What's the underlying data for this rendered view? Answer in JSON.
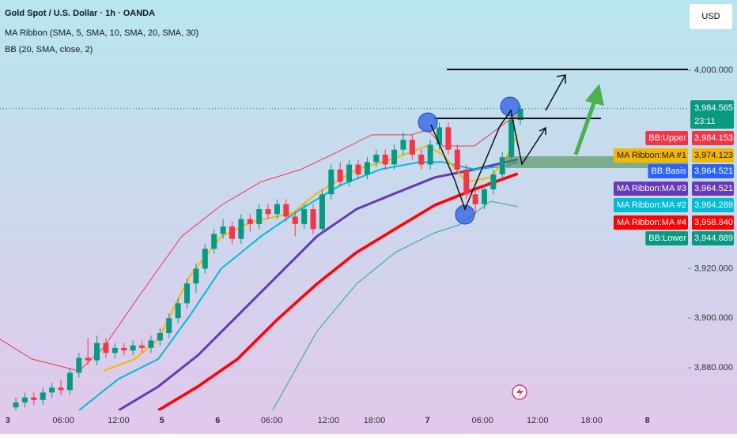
{
  "header": {
    "title": "Gold Spot / U.S. Dollar · 1h · OANDA",
    "indicator_1": "MA Ribbon (SMA, 5, SMA, 10, SMA, 20, SMA, 30)",
    "indicator_2": "BB (20, SMA, close, 2)",
    "currency": "USD"
  },
  "chart_data": {
    "type": "candlestick",
    "x": [
      -5,
      -4,
      -3,
      -2,
      -1,
      0,
      1,
      2,
      3,
      4,
      5,
      6,
      7,
      8,
      9,
      10,
      11,
      12,
      13,
      14,
      15,
      16,
      17,
      18,
      19,
      20,
      21,
      22,
      23,
      24,
      25,
      26,
      27,
      28,
      29,
      30,
      31,
      32,
      33,
      34,
      35,
      36,
      37,
      38,
      39,
      40,
      41,
      42,
      43,
      44,
      45,
      46,
      47,
      48,
      49,
      50,
      51
    ],
    "open": [
      3864,
      3866,
      3868,
      3867,
      3870,
      3872,
      3871,
      3878,
      3884,
      3883,
      3890,
      3886,
      3888,
      3887,
      3889,
      3888,
      3891,
      3894,
      3900,
      3906,
      3914,
      3920,
      3928,
      3934,
      3937,
      3932,
      3940,
      3938,
      3944,
      3942,
      3946,
      3941,
      3938,
      3944,
      3936,
      3950,
      3960,
      3955,
      3962,
      3958,
      3963,
      3966,
      3962,
      3968,
      3972,
      3966,
      3962,
      3970,
      3977,
      3968,
      3960,
      3950,
      3946,
      3952,
      3958,
      3965,
      3980
    ],
    "high": [
      3868,
      3870,
      3870,
      3872,
      3874,
      3875,
      3880,
      3886,
      3892,
      3893,
      3892,
      3890,
      3890,
      3891,
      3891,
      3893,
      3896,
      3902,
      3908,
      3916,
      3922,
      3930,
      3936,
      3940,
      3939,
      3942,
      3942,
      3946,
      3946,
      3948,
      3948,
      3943,
      3946,
      3946,
      3952,
      3962,
      3963,
      3964,
      3964,
      3965,
      3968,
      3968,
      3970,
      3975,
      3974,
      3968,
      3972,
      3979,
      3979,
      3970,
      3962,
      3952,
      3954,
      3960,
      3967,
      3982,
      3986
    ],
    "low": [
      3862,
      3864,
      3865,
      3865,
      3868,
      3869,
      3869,
      3876,
      3881,
      3881,
      3884,
      3884,
      3885,
      3885,
      3886,
      3886,
      3889,
      3892,
      3898,
      3904,
      3910,
      3918,
      3926,
      3932,
      3930,
      3930,
      3935,
      3936,
      3940,
      3940,
      3939,
      3933,
      3936,
      3934,
      3934,
      3948,
      3953,
      3953,
      3956,
      3956,
      3961,
      3960,
      3960,
      3966,
      3964,
      3960,
      3960,
      3968,
      3966,
      3958,
      3948,
      3942,
      3944,
      3950,
      3956,
      3963,
      3978
    ],
    "close": [
      3866,
      3868,
      3867,
      3870,
      3872,
      3871,
      3878,
      3884,
      3883,
      3890,
      3886,
      3888,
      3887,
      3889,
      3888,
      3891,
      3894,
      3900,
      3906,
      3914,
      3920,
      3928,
      3934,
      3937,
      3932,
      3940,
      3938,
      3944,
      3942,
      3946,
      3941,
      3938,
      3944,
      3936,
      3950,
      3960,
      3955,
      3962,
      3958,
      3963,
      3966,
      3962,
      3968,
      3972,
      3966,
      3962,
      3970,
      3977,
      3968,
      3960,
      3950,
      3946,
      3952,
      3958,
      3965,
      3980,
      3984.565
    ],
    "up_color": "#089981",
    "down_color": "#f23645",
    "lines": [
      {
        "color": "#f23645",
        "width": 1,
        "x": [
          -6.76,
          -3.2,
          2.0,
          4.7,
          9.0,
          13.4,
          17.8,
          22.2,
          26.6,
          30.1,
          34.5,
          38.9,
          40.7,
          42.4,
          45.9,
          49.4,
          50.7
        ],
        "values": [
          3891.5,
          3883.5,
          3878.7,
          3888,
          3910.6,
          3933,
          3945.6,
          3955,
          3960,
          3966,
          3974,
          3974,
          3976,
          3969.5,
          3969.5,
          3979,
          3982
        ]
      },
      {
        "color": "#22ab94",
        "width": 1,
        "x": [
          23.5,
          28.4,
          32.8,
          37.1,
          41.5,
          44.2,
          47.7,
          50.7
        ],
        "values": [
          3862.8,
          3894.6,
          3913.8,
          3926.5,
          3934.5,
          3937.6,
          3947.2,
          3945
        ]
      },
      {
        "color": "#ef4f6b",
        "width": 4,
        "x": [
          10.8,
          15.2,
          19.6,
          24.0,
          28.4,
          32.8,
          37.1,
          41.5,
          45.9,
          50.7
        ],
        "values": [
          3862.8,
          3872.4,
          3883.5,
          3899.4,
          3913.8,
          3926.5,
          3936,
          3945.6,
          3952,
          3958.3
        ]
      },
      {
        "color": "#ff0000",
        "width": 3,
        "x": [
          10.8,
          15.2,
          19.6,
          24.0,
          28.4,
          32.8,
          37.1,
          41.5,
          45.9,
          50.7
        ],
        "values": [
          3862.8,
          3872.4,
          3883.5,
          3899.4,
          3913.8,
          3926.5,
          3936,
          3945.6,
          3952,
          3958.3
        ]
      },
      {
        "color": "#673ab7",
        "width": 3,
        "x": [
          6.4,
          10.8,
          15.2,
          19.6,
          24.0,
          28.4,
          32.8,
          37.1,
          41.5,
          45.9,
          50.7
        ],
        "values": [
          3862.8,
          3872.4,
          3885,
          3901,
          3917,
          3933,
          3944,
          3950.4,
          3956.8,
          3960,
          3964.1
        ]
      },
      {
        "color": "#00bcd4",
        "width": 2,
        "x": [
          2.0,
          6.4,
          10.8,
          14.3,
          17.8,
          22.2,
          26.6,
          31.0,
          35.4,
          39.8,
          42.4,
          45.9,
          49.4,
          50.7
        ],
        "values": [
          3862.8,
          3875.5,
          3883.5,
          3901,
          3920,
          3933,
          3944,
          3953.6,
          3960,
          3963,
          3963,
          3960,
          3961.5,
          3963
        ]
      },
      {
        "color": "#f5b800",
        "width": 2,
        "x": [
          4.7,
          8.2,
          10.8,
          14.3,
          17.8,
          21.3,
          25.7,
          28.4,
          32.8,
          37.1,
          40.7,
          42.4,
          45.0,
          47.7,
          49.4,
          50.7
        ],
        "values": [
          3878.7,
          3883.5,
          3891.5,
          3917,
          3933,
          3939,
          3942.4,
          3950.4,
          3960,
          3964.7,
          3969.5,
          3966,
          3955,
          3956.8,
          3964.7,
          3974
        ]
      }
    ],
    "xlim": [
      -6.76,
      69.6
    ],
    "ylim": [
      3862.8,
      4028.4
    ],
    "xticks": [
      {
        "value": -5.9,
        "label": "3"
      },
      {
        "value": 0.27,
        "label": "06:00"
      },
      {
        "value": 6.4,
        "label": "12:00"
      },
      {
        "value": 11.2,
        "label": "5"
      },
      {
        "value": 17.4,
        "label": "6"
      },
      {
        "value": 23.4,
        "label": "06:00"
      },
      {
        "value": 29.7,
        "label": "12:00"
      },
      {
        "value": 34.8,
        "label": "18:00"
      },
      {
        "value": 40.7,
        "label": "7"
      },
      {
        "value": 46.8,
        "label": "06:00"
      },
      {
        "value": 52.9,
        "label": "12:00"
      },
      {
        "value": 58.9,
        "label": "18:00"
      },
      {
        "value": 65.1,
        "label": "8"
      }
    ],
    "yticks": [
      {
        "value": 3880,
        "label": "3,880.000"
      },
      {
        "value": 3900,
        "label": "3,900.000"
      },
      {
        "value": 3920,
        "label": "3,920.000"
      },
      {
        "value": 4000,
        "label": "4,000.000"
      }
    ],
    "last_price": {
      "value": 3984.565,
      "label": "3,984.565",
      "countdown": "23:11"
    },
    "price_tags": [
      {
        "name": "BB:Upper",
        "value": 3984.153,
        "label": "3,984.153",
        "color": "#f23645"
      },
      {
        "name": "MA Ribbon:MA #1",
        "value": 3974.123,
        "label": "3,974.123",
        "color": "#f5b800"
      },
      {
        "name": "BB:Basis",
        "value": 3964.521,
        "label": "3,964.521",
        "color": "#2962ff"
      },
      {
        "name": "MA Ribbon:MA #3",
        "value": 3964.521,
        "label": "3,964.521",
        "color": "#673ab7"
      },
      {
        "name": "MA Ribbon:MA #2",
        "value": 3964.289,
        "label": "3,964.289",
        "color": "#00bcd4"
      },
      {
        "name": "MA Ribbon:MA #4",
        "value": 3958.84,
        "label": "3,958.840",
        "color": "#ff0000"
      },
      {
        "name": "BB:Lower",
        "value": 3944.889,
        "label": "3,944.889",
        "color": "#089981"
      }
    ]
  }
}
